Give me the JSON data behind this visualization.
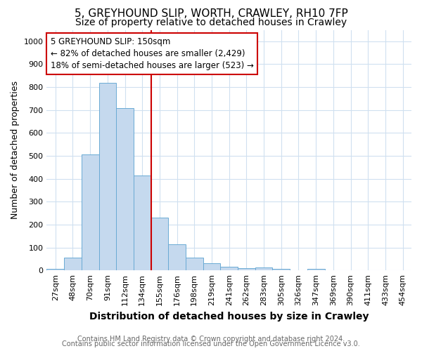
{
  "title": "5, GREYHOUND SLIP, WORTH, CRAWLEY, RH10 7FP",
  "subtitle": "Size of property relative to detached houses in Crawley",
  "xlabel": "Distribution of detached houses by size in Crawley",
  "ylabel": "Number of detached properties",
  "bin_labels": [
    "27sqm",
    "48sqm",
    "70sqm",
    "91sqm",
    "112sqm",
    "134sqm",
    "155sqm",
    "176sqm",
    "198sqm",
    "219sqm",
    "241sqm",
    "262sqm",
    "283sqm",
    "305sqm",
    "326sqm",
    "347sqm",
    "369sqm",
    "390sqm",
    "411sqm",
    "433sqm",
    "454sqm"
  ],
  "bar_heights": [
    8,
    57,
    505,
    820,
    710,
    415,
    230,
    115,
    55,
    33,
    15,
    10,
    13,
    8,
    0,
    8,
    0,
    0,
    0,
    0,
    0
  ],
  "bar_color": "#c5d9ee",
  "bar_edge_color": "#6aaad4",
  "ylim": [
    0,
    1050
  ],
  "yticks": [
    0,
    100,
    200,
    300,
    400,
    500,
    600,
    700,
    800,
    900,
    1000
  ],
  "vline_x": 6.0,
  "vline_color": "#cc0000",
  "annotation_text": "5 GREYHOUND SLIP: 150sqm\n← 82% of detached houses are smaller (2,429)\n18% of semi-detached houses are larger (523) →",
  "annotation_box_color": "#cc0000",
  "footnote1": "Contains HM Land Registry data © Crown copyright and database right 2024.",
  "footnote2": "Contains public sector information licensed under the Open Government Licence v3.0.",
  "background_color": "#ffffff",
  "grid_color": "#d0e0f0",
  "title_fontsize": 11,
  "subtitle_fontsize": 10,
  "xlabel_fontsize": 10,
  "ylabel_fontsize": 9,
  "tick_fontsize": 8,
  "footnote_fontsize": 7
}
